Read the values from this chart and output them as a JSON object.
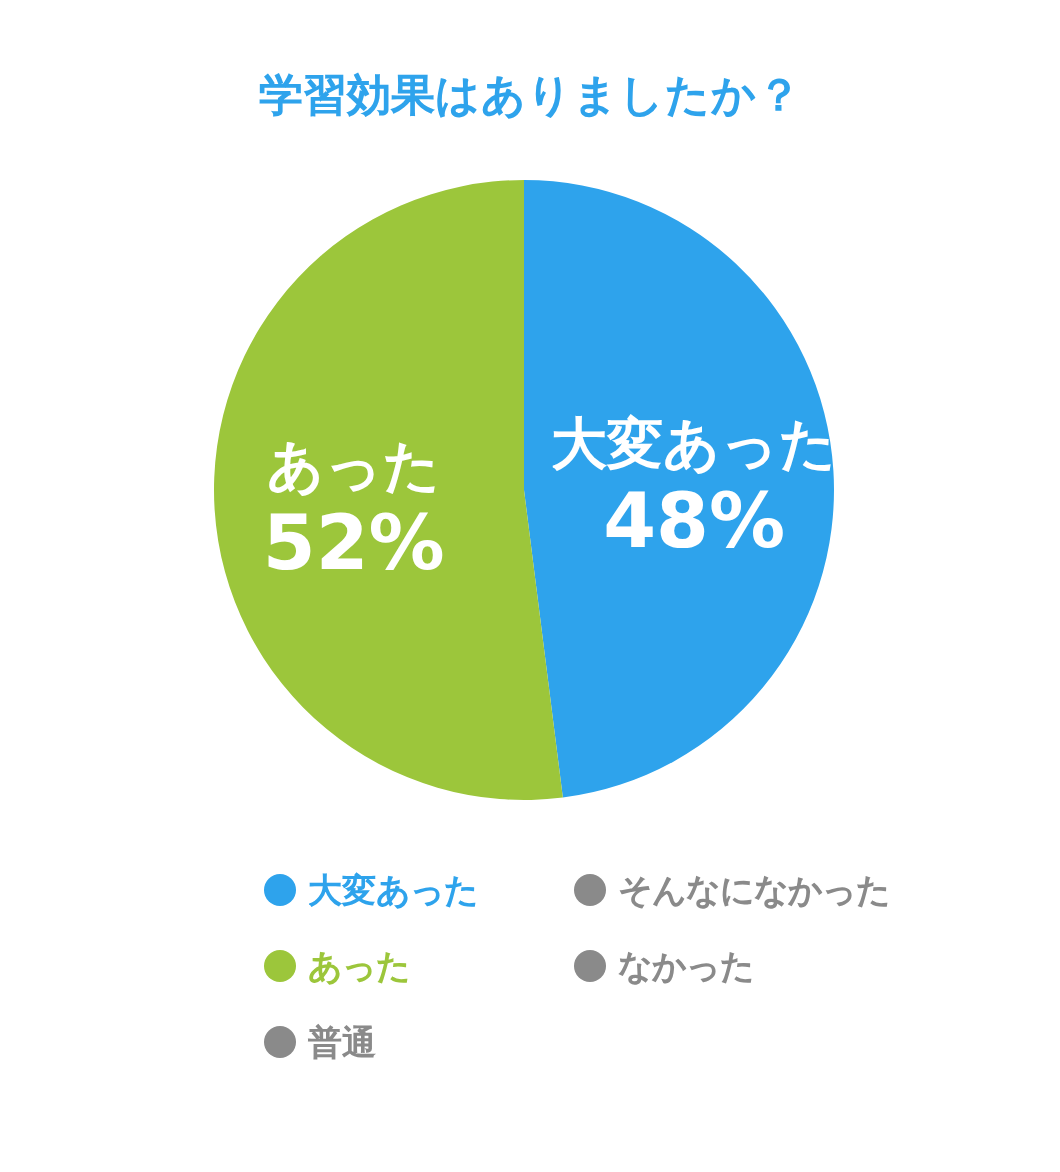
{
  "chart_data": {
    "type": "pie",
    "title": "学習効果はありましたか？",
    "categories": [
      "大変あった",
      "あった",
      "普通",
      "そんなになかった",
      "なかった"
    ],
    "values": [
      48,
      52,
      0,
      0,
      0
    ],
    "colors": [
      "#2ea3ec",
      "#9cc63b",
      "#8a8a8a",
      "#8a8a8a",
      "#8a8a8a"
    ],
    "value_labels": [
      "48%",
      "52%",
      null,
      null,
      null
    ],
    "legend": "bottom"
  }
}
